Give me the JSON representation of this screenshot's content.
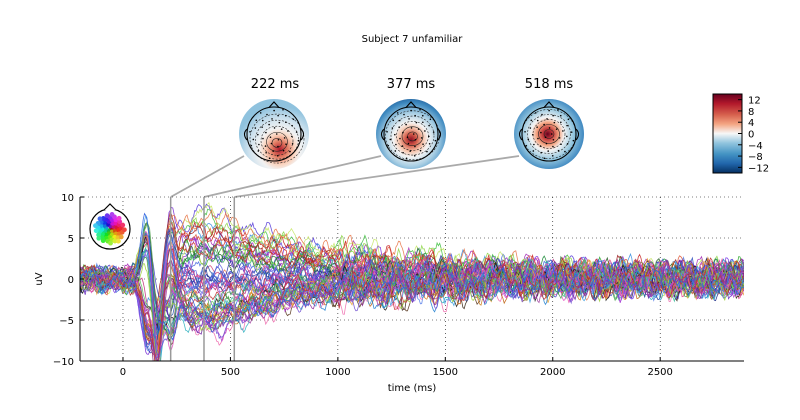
{
  "figure": {
    "title": "Subject 7 unfamiliar"
  },
  "topomaps": [
    {
      "label": "222 ms",
      "time_ms": 222
    },
    {
      "label": "377 ms",
      "time_ms": 377
    },
    {
      "label": "518 ms",
      "time_ms": 518
    }
  ],
  "colorbar": {
    "ticks": [
      12,
      8,
      4,
      0,
      -4,
      -8,
      -12
    ],
    "tick_labels": [
      "12",
      "8",
      "4",
      "0",
      "−4",
      "−8",
      "−12"
    ],
    "range": [
      -14,
      14
    ],
    "colormap": "RdBu_r"
  },
  "chart_data": {
    "type": "line",
    "title": "Subject 7 unfamiliar",
    "xlabel": "time (ms)",
    "ylabel": "uV",
    "xlim": [
      -200,
      2890
    ],
    "ylim": [
      -10,
      10
    ],
    "xticks": [
      0,
      500,
      1000,
      1500,
      2000,
      2500
    ],
    "xtick_labels": [
      "0",
      "500",
      "1000",
      "1500",
      "2000",
      "2500"
    ],
    "yticks": [
      -10,
      -5,
      0,
      5,
      10
    ],
    "ytick_labels": [
      "−10",
      "−5",
      "0",
      "5",
      "10"
    ],
    "grid": true,
    "n_channels": 60,
    "spatial_colors_inset": true,
    "highlight_times_ms": [
      222,
      377,
      518
    ],
    "features": {
      "early_peak_positive_uV": 10,
      "early_peak_negative_uV": -10,
      "late_positive_component_max_uV": 10,
      "late_positive_component_time_ms": [
        300,
        1100
      ],
      "frontal_negativity_min_uV": -7,
      "late_noise_amplitude_uV": 2
    }
  }
}
